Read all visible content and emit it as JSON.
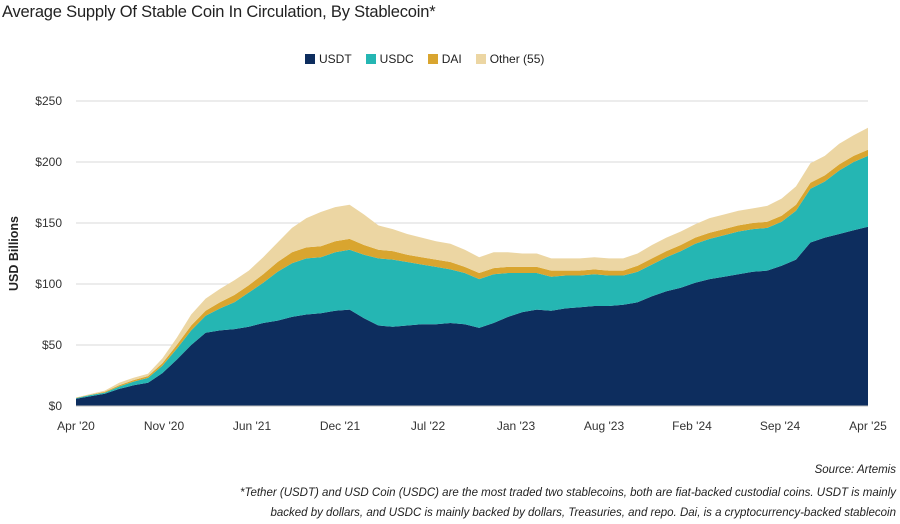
{
  "chart_data": {
    "type": "area",
    "stacked": true,
    "title": "Average Supply Of Stable Coin In Circulation, By Stablecoin*",
    "ylabel": "USD Billions",
    "xlabel": "",
    "ylim": [
      0,
      250
    ],
    "y_ticks": [
      "$0",
      "$50",
      "$100",
      "$150",
      "$200",
      "$250"
    ],
    "y_tick_values": [
      0,
      50,
      100,
      150,
      200,
      250
    ],
    "x_tick_labels": [
      "Apr '20",
      "Nov '20",
      "Jun '21",
      "Dec '21",
      "Jul '22",
      "Jan '23",
      "Aug '23",
      "Feb '24",
      "Sep '24",
      "Apr '25"
    ],
    "grid": true,
    "legend_position": "top-center",
    "x": [
      "2020-04",
      "2020-06",
      "2020-08",
      "2020-10",
      "2020-12",
      "2021-02",
      "2021-03",
      "2021-04",
      "2021-05",
      "2021-06",
      "2021-07",
      "2021-08",
      "2021-09",
      "2021-10",
      "2021-11",
      "2021-12",
      "2022-01",
      "2022-02",
      "2022-03",
      "2022-04",
      "2022-05",
      "2022-06",
      "2022-07",
      "2022-08",
      "2022-09",
      "2022-10",
      "2022-11",
      "2022-12",
      "2023-01",
      "2023-02",
      "2023-03",
      "2023-04",
      "2023-05",
      "2023-06",
      "2023-07",
      "2023-08",
      "2023-09",
      "2023-10",
      "2023-11",
      "2023-12",
      "2024-01",
      "2024-02",
      "2024-03",
      "2024-04",
      "2024-05",
      "2024-06",
      "2024-07",
      "2024-08",
      "2024-09",
      "2024-10",
      "2024-11",
      "2024-12",
      "2025-01",
      "2025-02",
      "2025-03",
      "2025-04"
    ],
    "series": [
      {
        "name": "USDT",
        "color": "#0d2d5e",
        "values": [
          6,
          8,
          10,
          14,
          17,
          19,
          27,
          38,
          50,
          60,
          62,
          63,
          65,
          68,
          70,
          73,
          75,
          76,
          78,
          79,
          72,
          66,
          65,
          66,
          67,
          67,
          68,
          67,
          64,
          68,
          73,
          77,
          79,
          78,
          80,
          81,
          82,
          82,
          83,
          85,
          90,
          94,
          97,
          101,
          104,
          106,
          108,
          110,
          111,
          115,
          120,
          134,
          138,
          141,
          144,
          147
        ]
      },
      {
        "name": "USDC",
        "color": "#25b6b3",
        "values": [
          0.5,
          1,
          1,
          2,
          3,
          4,
          6,
          9,
          12,
          14,
          18,
          22,
          28,
          33,
          40,
          44,
          46,
          46,
          48,
          49,
          52,
          55,
          55,
          52,
          49,
          47,
          44,
          42,
          40,
          40,
          36,
          32,
          30,
          28,
          27,
          26,
          26,
          25,
          24,
          25,
          26,
          28,
          30,
          32,
          33,
          34,
          35,
          35,
          35,
          36,
          40,
          44,
          46,
          52,
          56,
          58
        ]
      },
      {
        "name": "DAI",
        "color": "#d9a52f",
        "values": [
          0.2,
          0.3,
          0.6,
          1,
          1.2,
          1.5,
          2,
          3,
          4,
          4,
          5,
          6,
          6,
          7,
          8,
          9,
          9,
          9,
          9,
          9,
          8,
          7,
          7,
          6,
          6,
          6,
          6,
          5,
          5,
          5,
          5,
          5,
          5,
          5,
          4,
          4,
          4,
          4,
          4,
          5,
          5,
          5,
          5,
          5,
          5,
          5,
          5,
          5,
          5,
          5,
          5,
          5,
          5,
          5,
          5,
          5
        ]
      },
      {
        "name": "Other (55)",
        "color": "#ecd6a3",
        "values": [
          0.3,
          0.5,
          1,
          2,
          2,
          2,
          4,
          6,
          9,
          10,
          11,
          12,
          12,
          14,
          16,
          20,
          24,
          28,
          28,
          28,
          25,
          20,
          18,
          17,
          16,
          15,
          15,
          14,
          13,
          13,
          12,
          11,
          11,
          10,
          10,
          10,
          10,
          10,
          10,
          10,
          11,
          11,
          11,
          11,
          12,
          12,
          12,
          12,
          13,
          14,
          15,
          16,
          16,
          17,
          17,
          18
        ]
      }
    ]
  },
  "source": "Source: Artemis",
  "footnote_line1": "*Tether (USDT) and USD Coin (USDC) are the most traded two stablecoins, both are fiat-backed custodial coins. USDT is mainly",
  "footnote_line2": "backed by dollars, and USDC is mainly backed by dollars, Treasuries, and repo. Dai, is a cryptocurrency-backed stablecoin"
}
